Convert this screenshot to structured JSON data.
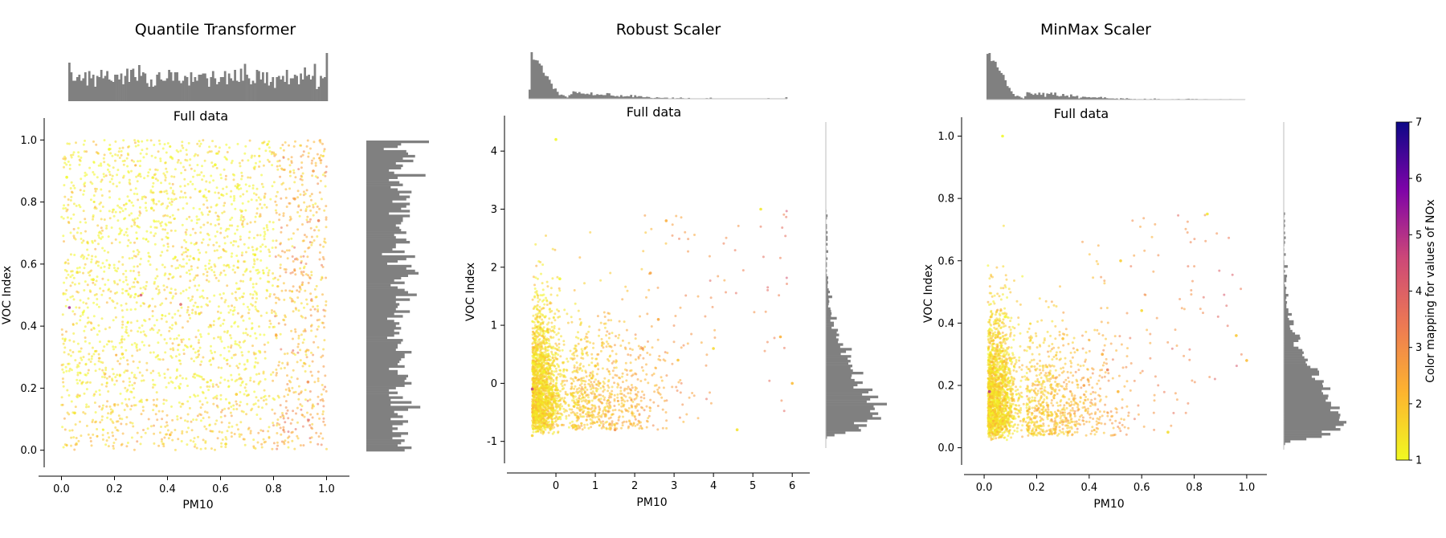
{
  "chart_data": [
    {
      "type": "scatter",
      "title": "Quantile Transformer",
      "subtitle": "Full data",
      "xlabel": "PM10",
      "ylabel": "VOC Index",
      "xlim": [
        -0.05,
        1.05
      ],
      "ylim": [
        -0.05,
        1.05
      ],
      "xticks": [
        "0.0",
        "0.2",
        "0.4",
        "0.6",
        "0.8",
        "1.0"
      ],
      "yticks": [
        "0.0",
        "0.2",
        "0.4",
        "0.6",
        "0.8",
        "1.0"
      ],
      "grid": false,
      "point_distribution": "uniform",
      "marginal_x": "flat",
      "marginal_y": "flat",
      "points": [
        [
          0.05,
          0.12,
          1.4
        ],
        [
          0.12,
          0.55,
          1.2
        ],
        [
          0.23,
          0.31,
          1.6
        ],
        [
          0.34,
          0.78,
          1.1
        ],
        [
          0.41,
          0.05,
          2.1
        ],
        [
          0.52,
          0.44,
          1.3
        ],
        [
          0.58,
          0.92,
          1.0
        ],
        [
          0.66,
          0.18,
          1.8
        ],
        [
          0.73,
          0.63,
          1.2
        ],
        [
          0.81,
          0.37,
          2.4
        ],
        [
          0.88,
          0.81,
          2.6
        ],
        [
          0.93,
          0.22,
          3.1
        ],
        [
          0.97,
          0.74,
          3.3
        ],
        [
          0.02,
          0.88,
          1.0
        ],
        [
          0.45,
          0.47,
          3.9
        ],
        [
          0.03,
          0.46,
          5.2
        ],
        [
          0.3,
          0.5,
          4.1
        ],
        [
          0.95,
          0.9,
          2.8
        ],
        [
          0.62,
          0.02,
          1.5
        ],
        [
          0.18,
          0.97,
          1.0
        ]
      ]
    },
    {
      "type": "scatter",
      "title": "Robust Scaler",
      "subtitle": "Full data",
      "xlabel": "PM10",
      "ylabel": "VOC Index",
      "xlim": [
        -1.0,
        6.2
      ],
      "ylim": [
        -1.35,
        4.5
      ],
      "xticks": [
        "0",
        "1",
        "2",
        "3",
        "4",
        "5",
        "6"
      ],
      "yticks": [
        "-1",
        "0",
        "1",
        "2",
        "3",
        "4"
      ],
      "grid": false,
      "point_distribution": "skewed",
      "marginal_x": "right-skewed",
      "marginal_y": "right-skewed",
      "points": [
        [
          -0.5,
          -0.5,
          1.3
        ],
        [
          -0.3,
          0.2,
          1.1
        ],
        [
          0.1,
          1.8,
          1.0
        ],
        [
          -0.6,
          -0.9,
          1.7
        ],
        [
          0.4,
          -0.2,
          1.5
        ],
        [
          1.0,
          0.3,
          1.8
        ],
        [
          1.9,
          -0.7,
          2.2
        ],
        [
          2.2,
          0.6,
          2.9
        ],
        [
          2.6,
          1.1,
          2.5
        ],
        [
          2.8,
          2.8,
          2.4
        ],
        [
          3.1,
          0.4,
          2.0
        ],
        [
          4.0,
          0.6,
          1.6
        ],
        [
          4.6,
          -0.8,
          1.4
        ],
        [
          5.7,
          0.8,
          2.3
        ],
        [
          6.0,
          0.0,
          2.1
        ],
        [
          -0.6,
          -0.1,
          4.8
        ],
        [
          5.2,
          3.0,
          1.3
        ],
        [
          0.0,
          4.2,
          1.0
        ],
        [
          1.5,
          -0.8,
          3.0
        ],
        [
          2.4,
          1.9,
          2.6
        ]
      ]
    },
    {
      "type": "scatter",
      "title": "MinMax Scaler",
      "subtitle": "Full data",
      "xlabel": "PM10",
      "ylabel": "VOC Index",
      "xlim": [
        -0.04,
        1.04
      ],
      "ylim": [
        -0.05,
        1.04
      ],
      "xticks": [
        "0.0",
        "0.2",
        "0.4",
        "0.6",
        "0.8",
        "1.0"
      ],
      "yticks": [
        "0.0",
        "0.2",
        "0.4",
        "0.6",
        "0.8",
        "1.0"
      ],
      "grid": false,
      "point_distribution": "skewed",
      "marginal_x": "right-skewed",
      "marginal_y": "right-skewed",
      "points": [
        [
          0.02,
          0.06,
          1.3
        ],
        [
          0.05,
          0.15,
          1.2
        ],
        [
          0.08,
          0.42,
          1.0
        ],
        [
          0.1,
          0.28,
          1.1
        ],
        [
          0.15,
          0.09,
          1.6
        ],
        [
          0.22,
          0.11,
          2.0
        ],
        [
          0.32,
          0.05,
          2.3
        ],
        [
          0.38,
          0.2,
          2.7
        ],
        [
          0.45,
          0.3,
          2.4
        ],
        [
          0.51,
          0.18,
          2.2
        ],
        [
          0.52,
          0.6,
          1.8
        ],
        [
          0.7,
          0.05,
          1.5
        ],
        [
          0.85,
          0.75,
          1.3
        ],
        [
          0.96,
          0.36,
          1.9
        ],
        [
          1.0,
          0.28,
          2.1
        ],
        [
          0.02,
          0.18,
          5.0
        ],
        [
          0.07,
          1.0,
          1.0
        ],
        [
          0.6,
          0.44,
          1.6
        ],
        [
          0.3,
          0.35,
          2.0
        ],
        [
          0.47,
          0.25,
          3.4
        ]
      ]
    }
  ],
  "colorbar": {
    "label": "Color mapping for values of NOx",
    "min": 1,
    "max": 7,
    "ticks": [
      "1",
      "2",
      "3",
      "4",
      "5",
      "6",
      "7"
    ],
    "colormap": "plasma"
  },
  "colors": {
    "histogram": "#808080",
    "axis": "#000000"
  }
}
